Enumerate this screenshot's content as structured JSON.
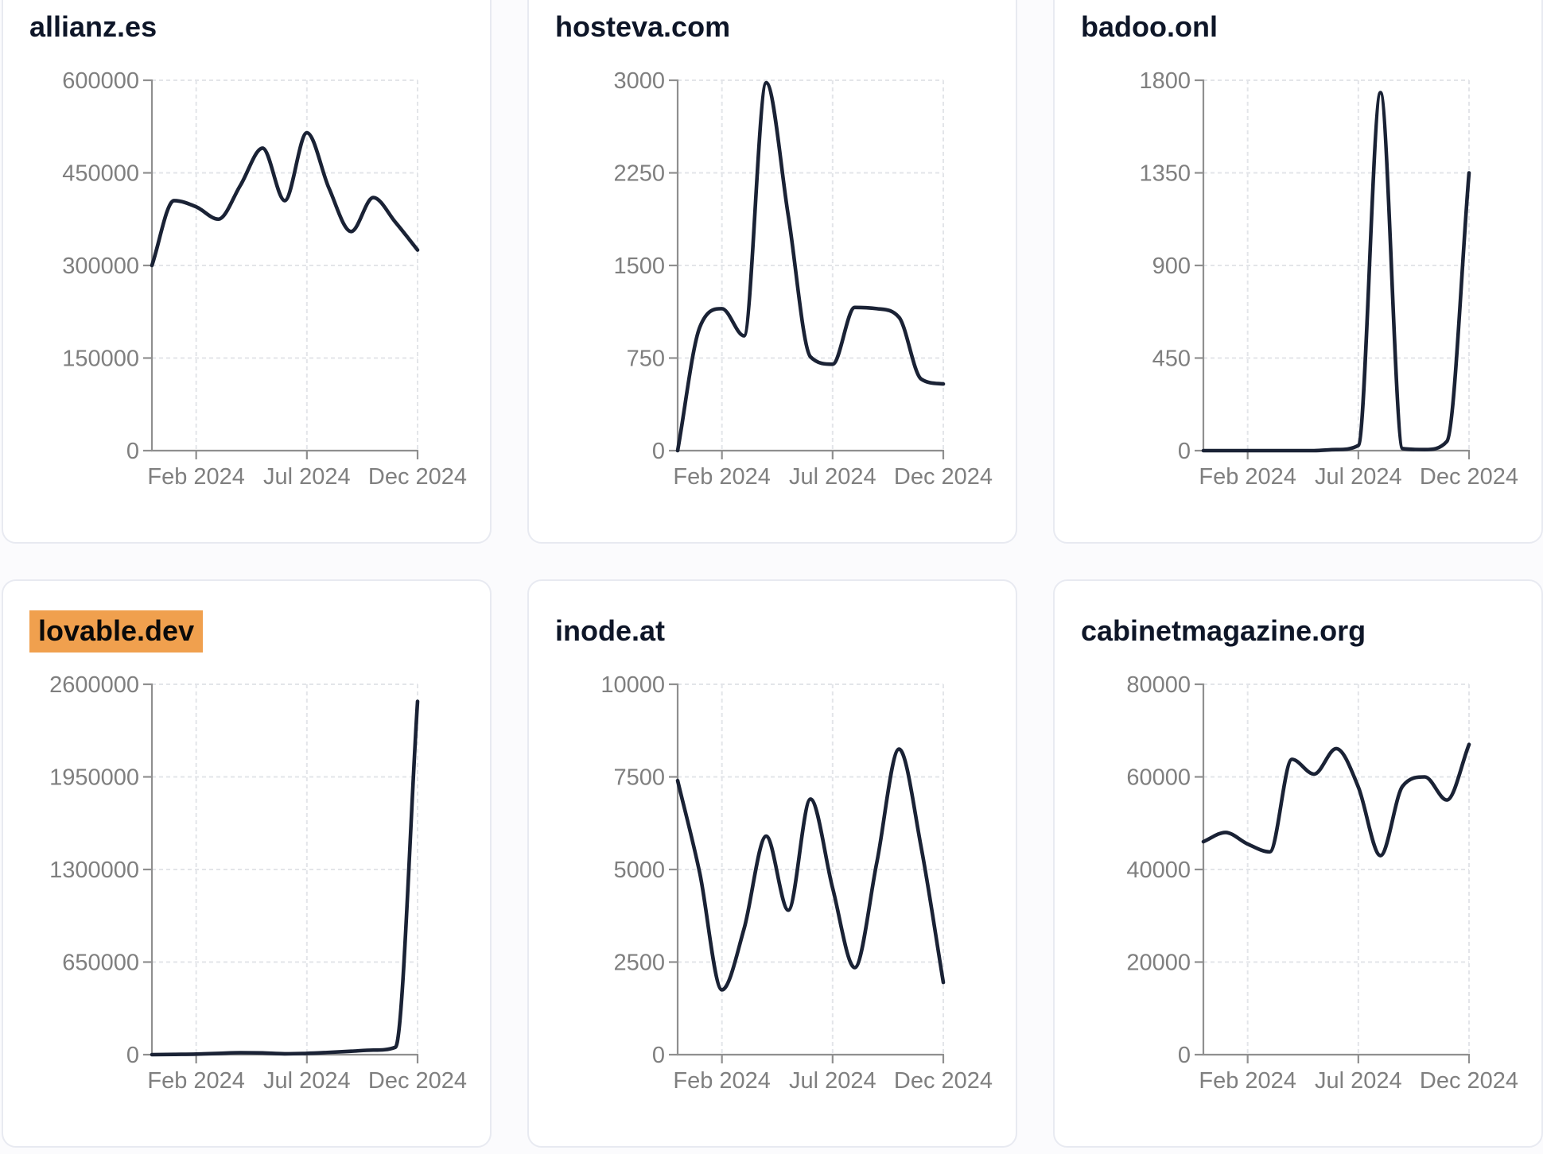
{
  "page": {
    "background": "#fbfbfd",
    "card_background": "#ffffff",
    "card_border": "#e8eaf1"
  },
  "colors": {
    "line": "#1a2235",
    "axis": "#8f8f8f",
    "tick_label": "#7f7f7f",
    "gridline": "#e3e5e9",
    "title": "#0e1628",
    "highlight_bg": "#f0a04e",
    "highlight_text": "#0a0a0a"
  },
  "x_tick_labels": [
    "Feb 2024",
    "Jul 2024",
    "Dec 2024"
  ],
  "chart_data": [
    {
      "type": "line",
      "title": "allianz.es",
      "title_highlighted": false,
      "x": [
        "Dec 2023",
        "Jan 2024",
        "Feb 2024",
        "Mar 2024",
        "Apr 2024",
        "May 2024",
        "Jun 2024",
        "Jul 2024",
        "Aug 2024",
        "Sep 2024",
        "Oct 2024",
        "Nov 2024",
        "Dec 2024"
      ],
      "values": [
        300000,
        405000,
        395000,
        375000,
        430000,
        490000,
        405000,
        515000,
        425000,
        355000,
        410000,
        370000,
        325000
      ],
      "y_ticks": [
        0,
        150000,
        300000,
        450000,
        600000
      ],
      "ylim": [
        0,
        600000
      ],
      "x_tick_labels": [
        "Feb 2024",
        "Jul 2024",
        "Dec 2024"
      ],
      "x_tick_indices": [
        2,
        7,
        12
      ],
      "grid": "dashed",
      "legend": "none"
    },
    {
      "type": "line",
      "title": "hosteva.com",
      "title_highlighted": false,
      "x": [
        "Dec 2023",
        "Jan 2024",
        "Feb 2024",
        "Mar 2024",
        "Apr 2024",
        "May 2024",
        "Jun 2024",
        "Jul 2024",
        "Aug 2024",
        "Sep 2024",
        "Oct 2024",
        "Nov 2024",
        "Dec 2024"
      ],
      "values": [
        0,
        1000,
        1150,
        930,
        2980,
        1900,
        760,
        700,
        1160,
        1150,
        1080,
        580,
        540
      ],
      "y_ticks": [
        0,
        750,
        1500,
        2250,
        3000
      ],
      "ylim": [
        0,
        3000
      ],
      "x_tick_labels": [
        "Feb 2024",
        "Jul 2024",
        "Dec 2024"
      ],
      "x_tick_indices": [
        2,
        7,
        12
      ],
      "grid": "dashed",
      "legend": "none"
    },
    {
      "type": "line",
      "title": "badoo.onl",
      "title_highlighted": false,
      "x": [
        "Dec 2023",
        "Jan 2024",
        "Feb 2024",
        "Mar 2024",
        "Apr 2024",
        "May 2024",
        "Jun 2024",
        "Jul 2024",
        "Aug 2024",
        "Sep 2024",
        "Oct 2024",
        "Nov 2024",
        "Dec 2024"
      ],
      "values": [
        0,
        0,
        0,
        0,
        0,
        0,
        5,
        25,
        1740,
        10,
        5,
        45,
        1350
      ],
      "y_ticks": [
        0,
        450,
        900,
        1350,
        1800
      ],
      "ylim": [
        0,
        1800
      ],
      "x_tick_labels": [
        "Feb 2024",
        "Jul 2024",
        "Dec 2024"
      ],
      "x_tick_indices": [
        2,
        7,
        12
      ],
      "grid": "dashed",
      "legend": "none"
    },
    {
      "type": "line",
      "title": "lovable.dev",
      "title_highlighted": true,
      "x": [
        "Dec 2023",
        "Jan 2024",
        "Feb 2024",
        "Mar 2024",
        "Apr 2024",
        "May 2024",
        "Jun 2024",
        "Jul 2024",
        "Aug 2024",
        "Sep 2024",
        "Oct 2024",
        "Nov 2024",
        "Dec 2024"
      ],
      "values": [
        0,
        2000,
        4000,
        9000,
        14000,
        12000,
        6000,
        9000,
        16000,
        24000,
        32000,
        52000,
        2480000
      ],
      "y_ticks": [
        0,
        650000,
        1300000,
        1950000,
        2600000
      ],
      "ylim": [
        0,
        2600000
      ],
      "x_tick_labels": [
        "Feb 2024",
        "Jul 2024",
        "Dec 2024"
      ],
      "x_tick_indices": [
        2,
        7,
        12
      ],
      "grid": "dashed",
      "legend": "none"
    },
    {
      "type": "line",
      "title": "inode.at",
      "title_highlighted": false,
      "x": [
        "Dec 2023",
        "Jan 2024",
        "Feb 2024",
        "Mar 2024",
        "Apr 2024",
        "May 2024",
        "Jun 2024",
        "Jul 2024",
        "Aug 2024",
        "Sep 2024",
        "Oct 2024",
        "Nov 2024",
        "Dec 2024"
      ],
      "values": [
        7400,
        4900,
        1750,
        3400,
        5900,
        3900,
        6900,
        4500,
        2350,
        5200,
        8250,
        5600,
        1950
      ],
      "y_ticks": [
        0,
        2500,
        5000,
        7500,
        10000
      ],
      "ylim": [
        0,
        10000
      ],
      "x_tick_labels": [
        "Feb 2024",
        "Jul 2024",
        "Dec 2024"
      ],
      "x_tick_indices": [
        2,
        7,
        12
      ],
      "grid": "dashed",
      "legend": "none"
    },
    {
      "type": "line",
      "title": "cabinetmagazine.org",
      "title_highlighted": false,
      "x": [
        "Dec 2023",
        "Jan 2024",
        "Feb 2024",
        "Mar 2024",
        "Apr 2024",
        "May 2024",
        "Jun 2024",
        "Jul 2024",
        "Aug 2024",
        "Sep 2024",
        "Oct 2024",
        "Nov 2024",
        "Dec 2024"
      ],
      "values": [
        46000,
        48000,
        45500,
        43800,
        63800,
        60600,
        66100,
        57800,
        43000,
        58000,
        60000,
        55000,
        67000
      ],
      "y_ticks": [
        0,
        20000,
        40000,
        60000,
        80000
      ],
      "ylim": [
        0,
        80000
      ],
      "x_tick_labels": [
        "Feb 2024",
        "Jul 2024",
        "Dec 2024"
      ],
      "x_tick_indices": [
        2,
        7,
        12
      ],
      "grid": "dashed",
      "legend": "none"
    }
  ]
}
